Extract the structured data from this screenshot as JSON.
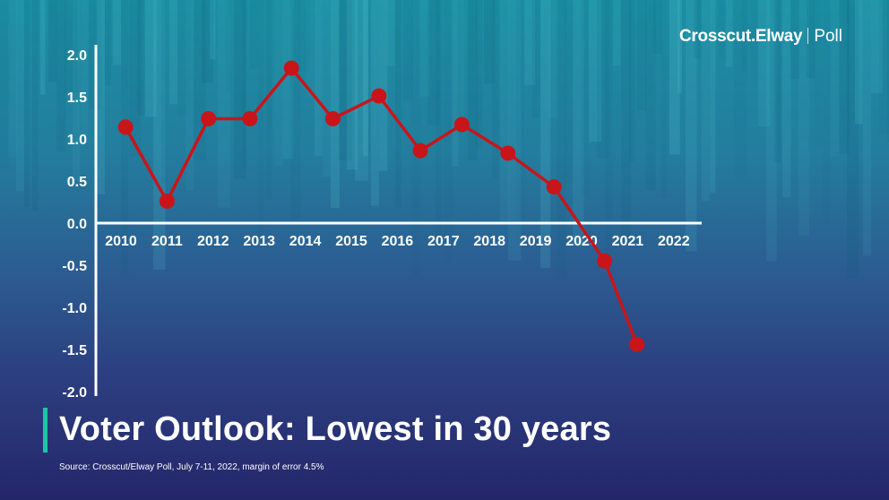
{
  "brand": {
    "name": "Crosscut.Elway",
    "suffix": "Poll"
  },
  "title": "Voter Outlook: Lowest in 30 years",
  "source": "Source: Crosscut/Elway Poll, July 7-11, 2022, margin of error 4.5%",
  "colors": {
    "line": "#c8151a",
    "axis": "#ffffff",
    "accent_bar": "#1fc4a8"
  },
  "chart_data": {
    "type": "line",
    "title": "",
    "xlabel": "",
    "ylabel": "",
    "ylim": [
      -2.0,
      2.0
    ],
    "yticks": [
      "2.0",
      "1.5",
      "1.0",
      "0.5",
      "0.0",
      "-0.5",
      "-1.0",
      "-1.5",
      "-2.0"
    ],
    "categories": [
      "2010",
      "2011",
      "2012",
      "2013",
      "2014",
      "2015",
      "2016",
      "2017",
      "2018",
      "2019",
      "2020",
      "2021",
      "2022"
    ],
    "points": [
      {
        "x": 2010.1,
        "y": 1.14
      },
      {
        "x": 2011.0,
        "y": 0.26
      },
      {
        "x": 2011.9,
        "y": 1.24
      },
      {
        "x": 2012.8,
        "y": 1.24
      },
      {
        "x": 2013.7,
        "y": 1.84
      },
      {
        "x": 2014.6,
        "y": 1.24
      },
      {
        "x": 2015.6,
        "y": 1.51
      },
      {
        "x": 2016.5,
        "y": 0.86
      },
      {
        "x": 2017.4,
        "y": 1.17
      },
      {
        "x": 2018.4,
        "y": 0.83
      },
      {
        "x": 2019.4,
        "y": 0.43
      },
      {
        "x": 2020.5,
        "y": -0.45
      },
      {
        "x": 2021.2,
        "y": -1.44
      }
    ],
    "grid": false,
    "legend": "none"
  }
}
